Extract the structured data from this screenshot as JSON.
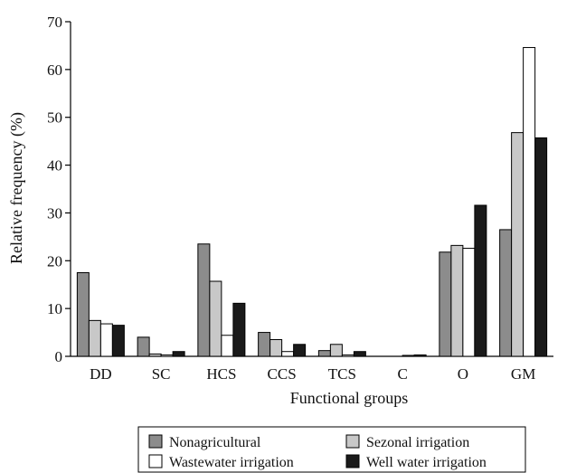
{
  "chart_data": {
    "type": "bar",
    "title": "",
    "xlabel": "Functional groups",
    "ylabel": "Relative frequency (%)",
    "ylim": [
      0,
      70
    ],
    "yticks": [
      0,
      10,
      20,
      30,
      40,
      50,
      60,
      70
    ],
    "grid": false,
    "legend_position": "bottom",
    "categories": [
      "DD",
      "SC",
      "HCS",
      "CCS",
      "TCS",
      "C",
      "O",
      "GM"
    ],
    "series": [
      {
        "name": "Nonagricultural",
        "color": "#8c8c8c",
        "values": [
          17.5,
          4.0,
          23.5,
          5.0,
          1.2,
          0.0,
          21.8,
          26.5
        ]
      },
      {
        "name": "Sezonal irrigation",
        "color": "#c8c8c8",
        "values": [
          7.5,
          0.5,
          15.7,
          3.5,
          2.5,
          0.0,
          23.2,
          46.8
        ]
      },
      {
        "name": "Wastewater irrigation",
        "color": "#ffffff",
        "values": [
          6.8,
          0.3,
          4.4,
          1.0,
          0.3,
          0.2,
          22.6,
          64.6
        ]
      },
      {
        "name": "Well water irrigation",
        "color": "#1a1a1a",
        "values": [
          6.5,
          1.0,
          11.1,
          2.5,
          1.0,
          0.3,
          31.6,
          45.7
        ]
      }
    ]
  }
}
